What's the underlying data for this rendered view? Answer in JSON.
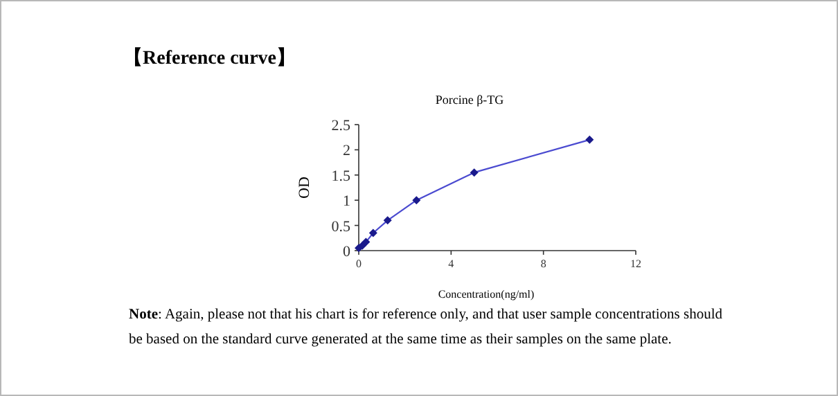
{
  "chart_data": {
    "type": "line",
    "title": "【Reference curve】",
    "subtitle": "Porcine β-TG",
    "xlabel": "Concentration(ng/ml)",
    "ylabel": "OD",
    "x": [
      0,
      0.156,
      0.312,
      0.625,
      1.25,
      2.5,
      5,
      10
    ],
    "series": [
      {
        "color": "#1a1a8c",
        "values": [
          0.05,
          0.1,
          0.17,
          0.35,
          0.6,
          1.0,
          1.55,
          2.2
        ]
      }
    ],
    "xlim": [
      0,
      12
    ],
    "xticks": [
      0,
      4,
      8,
      12
    ],
    "ylim": [
      0,
      2.5
    ],
    "yticks": [
      0,
      0.5,
      1,
      1.5,
      2,
      2.5
    ],
    "marker": "diamond",
    "annotations": [
      "**Note**: Again, please not that his chart is for reference only, and that user sample concentrations should be based on the standard curve generated at the same time as their samples on the same plate."
    ]
  }
}
